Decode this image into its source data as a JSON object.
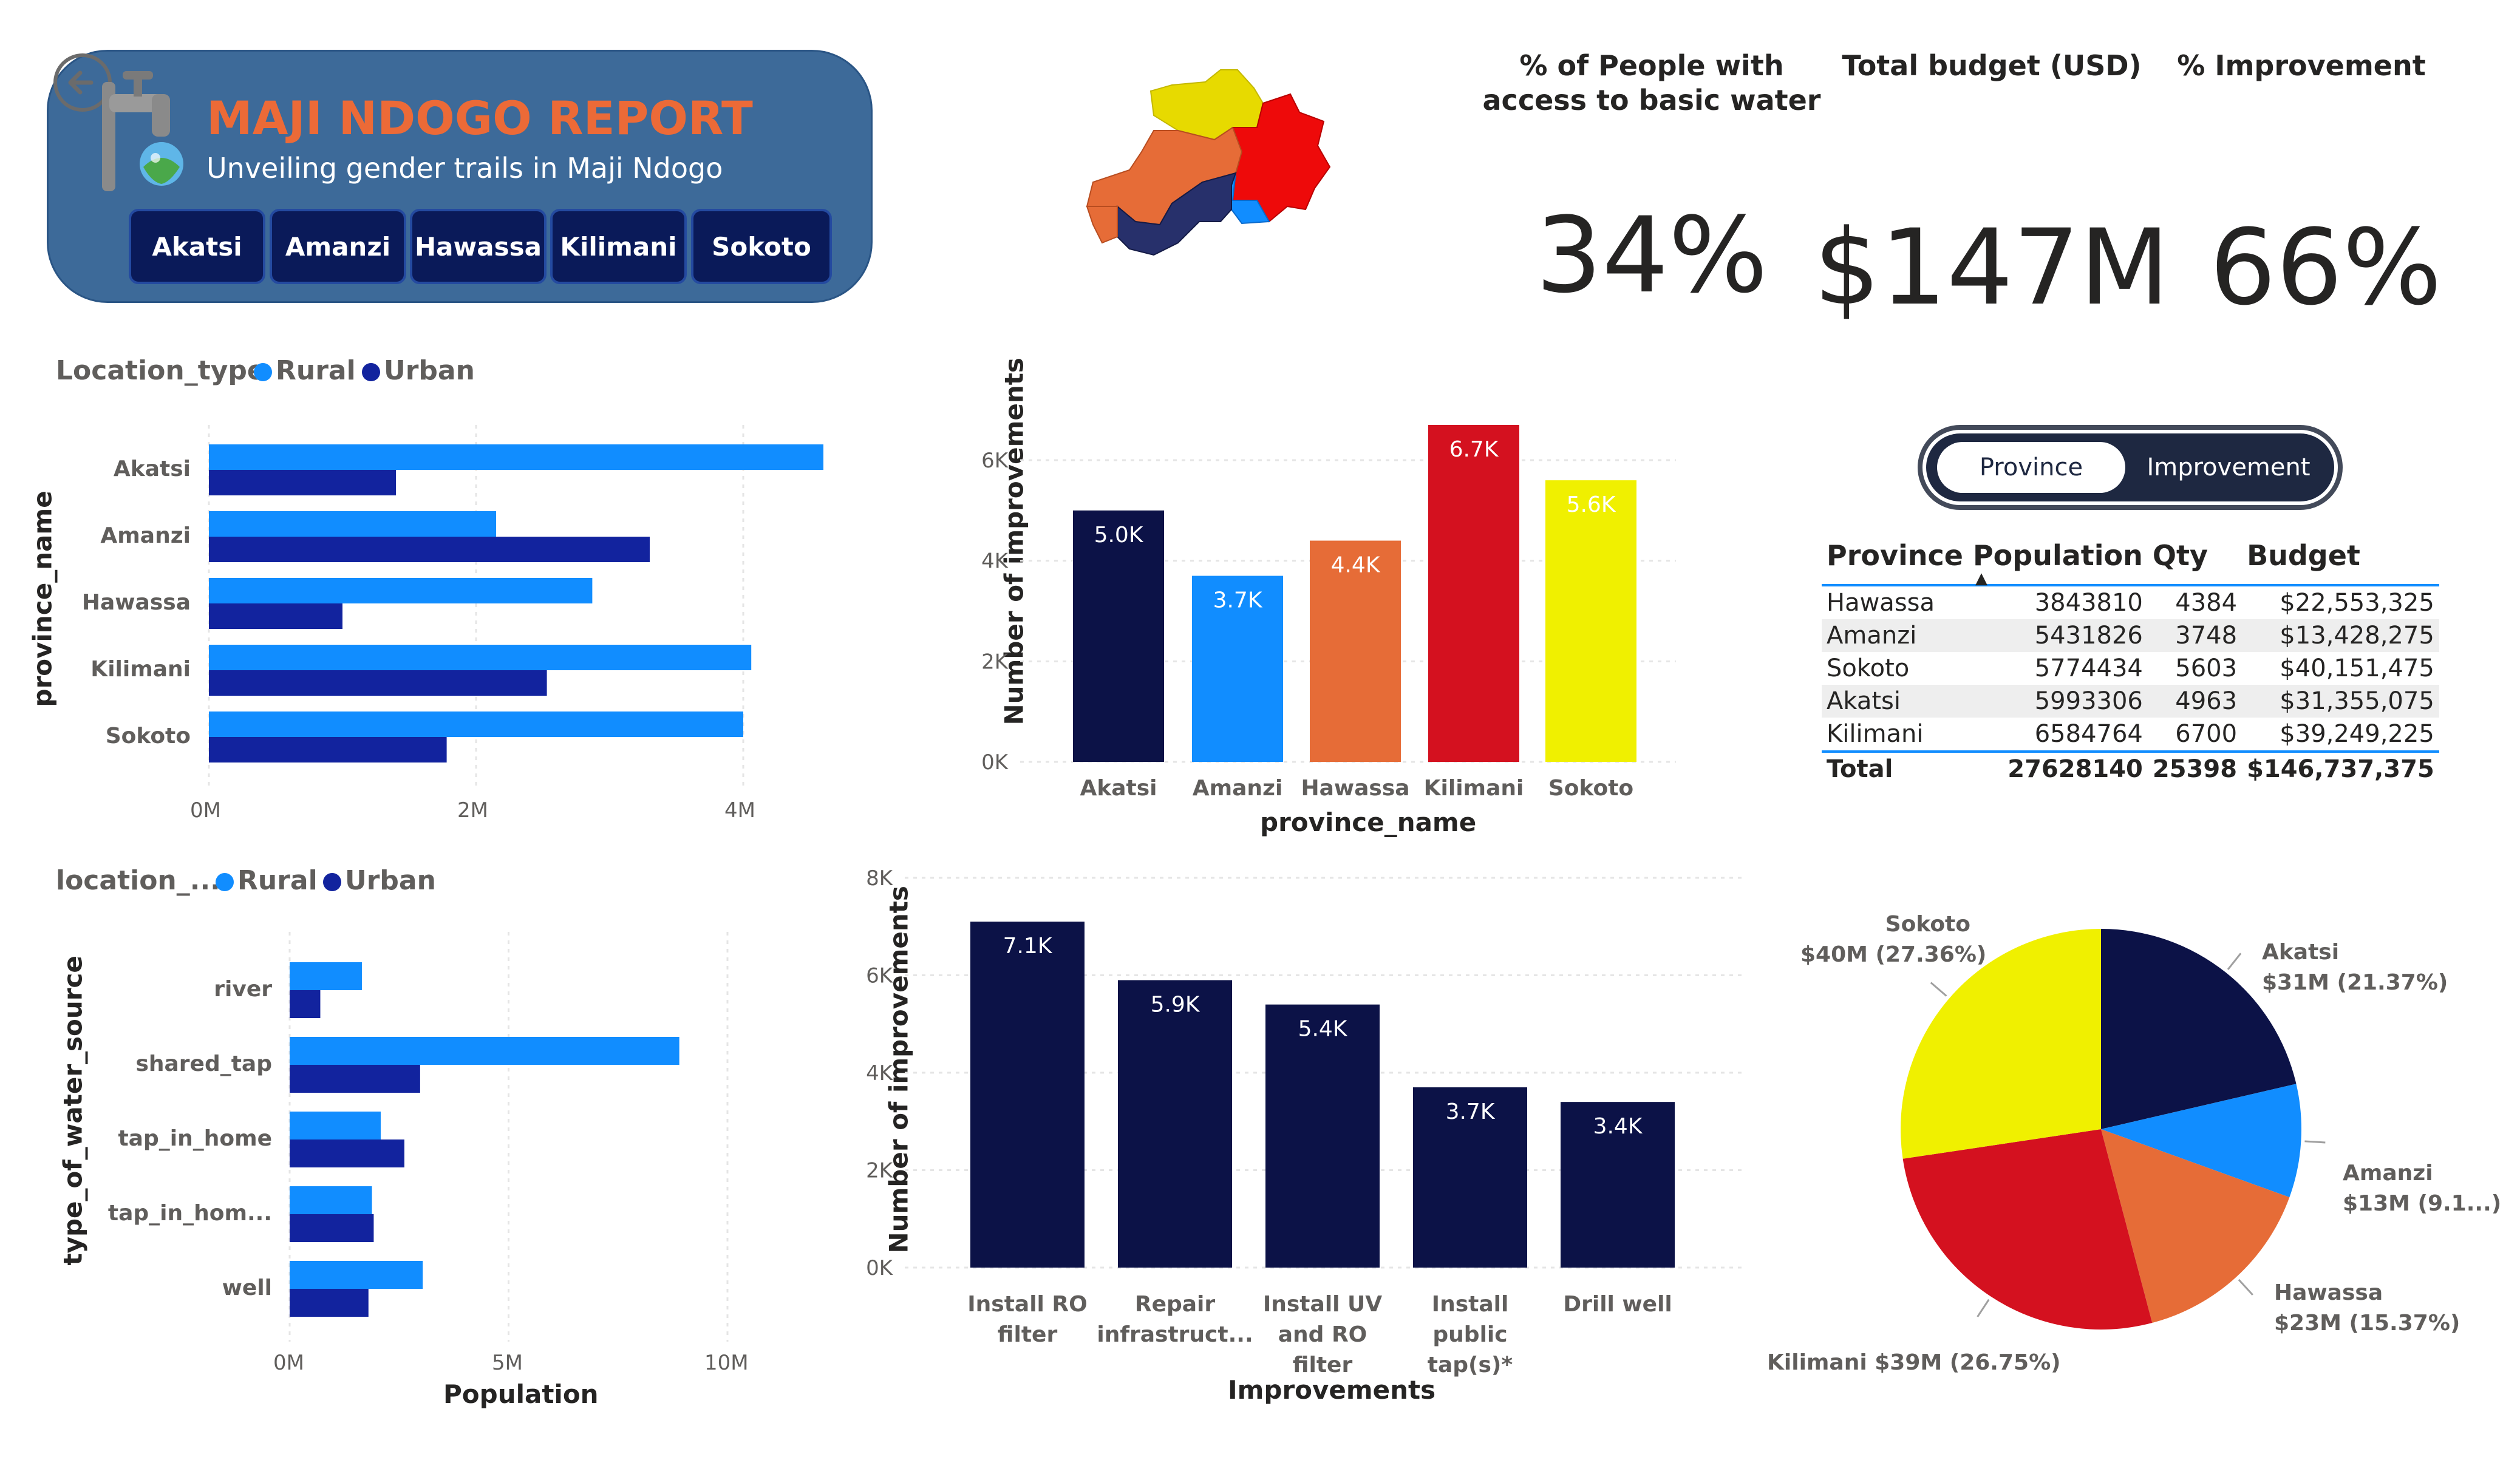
{
  "header": {
    "title": "MAJI NDOGO REPORT",
    "subtitle": "Unveiling gender trails in Maji Ndogo",
    "buttons": [
      "Akatsi",
      "Amanzi",
      "Hawassa",
      "Kilimani",
      "Sokoto"
    ]
  },
  "kpis": [
    {
      "title": "% of People with access to basic water",
      "value": "34%"
    },
    {
      "title": "Total budget (USD)",
      "value": "$147M"
    },
    {
      "title": "% Improvement",
      "value": "66%"
    }
  ],
  "colors": {
    "rural": "#118dff",
    "urban": "#12239e",
    "navy": "#0c1247",
    "akatsi": "#0c1247",
    "amanzi": "#118dff",
    "hawassa": "#e66c37",
    "kilimani": "#d4111f",
    "sokoto": "#f0f000",
    "header_bg": "#3d6a99",
    "header_title": "#ec6a37"
  },
  "toggle": {
    "left": "Province",
    "right": "Improvement",
    "selected": "Province"
  },
  "table": {
    "headers": [
      "Province",
      "Population",
      "Qty",
      "Budget"
    ],
    "sort_column": "Population",
    "rows": [
      [
        "Hawassa",
        "3843810",
        "4384",
        "$22,553,325"
      ],
      [
        "Amanzi",
        "5431826",
        "3748",
        "$13,428,275"
      ],
      [
        "Sokoto",
        "5774434",
        "5603",
        "$40,151,475"
      ],
      [
        "Akatsi",
        "5993306",
        "4963",
        "$31,355,075"
      ],
      [
        "Kilimani",
        "6584764",
        "6700",
        "$39,249,225"
      ]
    ],
    "total": [
      "Total",
      "27628140",
      "25398",
      "$146,737,375"
    ]
  },
  "chart_data": [
    {
      "id": "province-population",
      "type": "bar",
      "orientation": "horizontal",
      "legend_title": "Location_type",
      "categories": [
        "Akatsi",
        "Amanzi",
        "Hawassa",
        "Kilimani",
        "Sokoto"
      ],
      "series": [
        {
          "name": "Rural",
          "values": [
            4600000,
            2150000,
            2870000,
            4060000,
            4000000
          ]
        },
        {
          "name": "Urban",
          "values": [
            1400000,
            3300000,
            1000000,
            2530000,
            1780000
          ]
        }
      ],
      "ylabel": "province_name",
      "xlim": [
        0,
        4600000
      ],
      "xticks": [
        "0M",
        "2M",
        "4M"
      ],
      "xtick_values": [
        0,
        2000000,
        4000000
      ]
    },
    {
      "id": "province-improvements",
      "type": "bar",
      "orientation": "vertical",
      "categories": [
        "Akatsi",
        "Amanzi",
        "Hawassa",
        "Kilimani",
        "Sokoto"
      ],
      "values": [
        5000,
        3700,
        4400,
        6700,
        5600
      ],
      "labels": [
        "5.0K",
        "3.7K",
        "4.4K",
        "6.7K",
        "5.6K"
      ],
      "xlabel": "province_name",
      "ylabel": "Number of improvements",
      "ylim": [
        0,
        7000
      ],
      "yticks": [
        "0K",
        "2K",
        "4K",
        "6K"
      ],
      "ytick_values": [
        0,
        2000,
        4000,
        6000
      ]
    },
    {
      "id": "water-source-population",
      "type": "bar",
      "orientation": "horizontal",
      "legend_title": "location_...",
      "categories": [
        "river",
        "shared_tap",
        "tap_in_home",
        "tap_in_hom...",
        "well"
      ],
      "series": [
        {
          "name": "Rural",
          "values": [
            1650000,
            8900000,
            2080000,
            1880000,
            3040000
          ]
        },
        {
          "name": "Urban",
          "values": [
            700000,
            2980000,
            2620000,
            1920000,
            1800000
          ]
        }
      ],
      "xlabel": "Population",
      "ylabel": "type_of_water_source",
      "xlim": [
        0,
        10000000
      ],
      "xticks": [
        "0M",
        "5M",
        "10M"
      ],
      "xtick_values": [
        0,
        5000000,
        10000000
      ]
    },
    {
      "id": "improvement-types",
      "type": "bar",
      "orientation": "vertical",
      "categories": [
        "Install RO filter",
        "Repair infrastruct...",
        "Install UV and RO filter",
        "Install public tap(s)*",
        "Drill well"
      ],
      "values": [
        7100,
        5900,
        5400,
        3700,
        3400
      ],
      "labels": [
        "7.1K",
        "5.9K",
        "5.4K",
        "3.7K",
        "3.4K"
      ],
      "xlabel": "Improvements",
      "ylabel": "Number of improvements",
      "ylim": [
        0,
        8000
      ],
      "yticks": [
        "0K",
        "2K",
        "4K",
        "6K",
        "8K"
      ],
      "ytick_values": [
        0,
        2000,
        4000,
        6000,
        8000
      ]
    },
    {
      "id": "budget-by-province",
      "type": "pie",
      "slices": [
        {
          "name": "Akatsi",
          "value": 21.37,
          "label": "Akatsi",
          "detail": "$31M (21.37%)"
        },
        {
          "name": "Amanzi",
          "value": 9.15,
          "label": "Amanzi",
          "detail": "$13M (9.1...)"
        },
        {
          "name": "Hawassa",
          "value": 15.37,
          "label": "Hawassa",
          "detail": "$23M (15.37%)"
        },
        {
          "name": "Kilimani",
          "value": 26.75,
          "label": "Kilimani",
          "detail": "$39M (26.75%)"
        },
        {
          "name": "Sokoto",
          "value": 27.36,
          "label": "Sokoto",
          "detail": "$40M (27.36%)"
        }
      ]
    }
  ]
}
